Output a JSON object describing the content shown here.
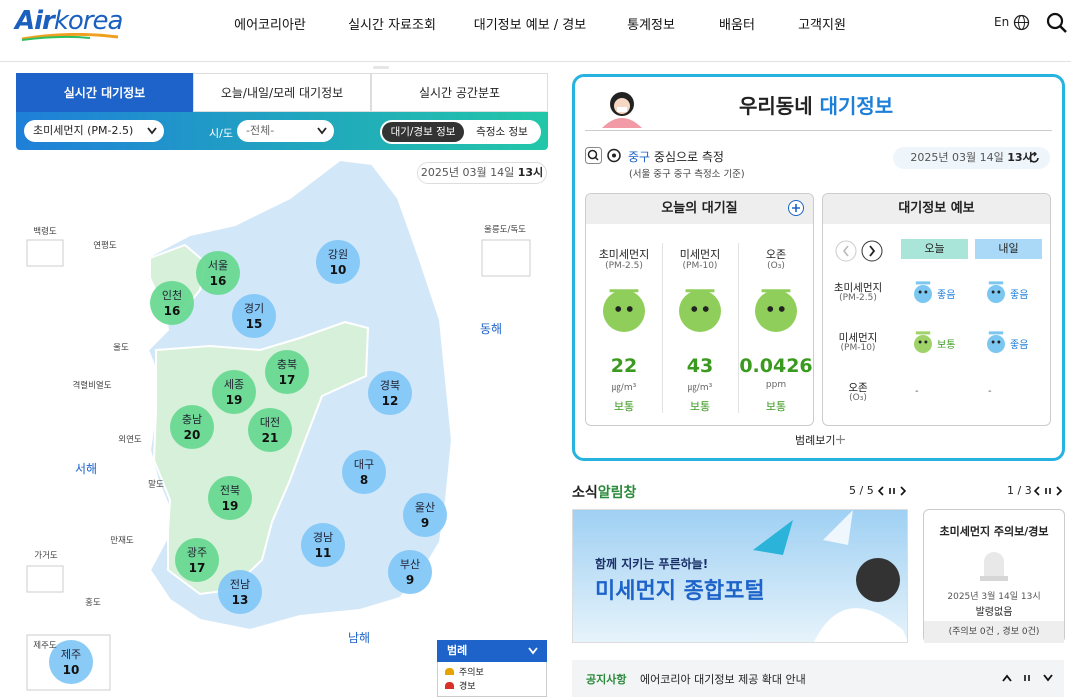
{
  "header": {
    "logo": {
      "air": "Air",
      "korea": "korea"
    },
    "nav": [
      "에어코리아란",
      "실시간 자료조회",
      "대기정보 예보 / 경보",
      "통계정보",
      "배움터",
      "고객지원"
    ],
    "lang": "En"
  },
  "left": {
    "tabs": [
      "실시간 대기정보",
      "오늘/내일/모레 대기정보",
      "실시간 공간분포"
    ],
    "filters": {
      "pollutant": "초미세먼지 (PM-2.5)",
      "region_label": "시/도",
      "region": "-전체-",
      "toggles": [
        "대기/경보 정보",
        "측정소 정보"
      ]
    },
    "date": "2025년 03월 14일",
    "hour": "13시",
    "map": {
      "regions": [
        {
          "name": "서울",
          "value": 16,
          "color": "#66d88f"
        },
        {
          "name": "인천",
          "value": 16,
          "color": "#66d88f"
        },
        {
          "name": "경기",
          "value": 15,
          "color": "#80c6f6"
        },
        {
          "name": "강원",
          "value": 10,
          "color": "#80c6f6"
        },
        {
          "name": "충북",
          "value": 17,
          "color": "#66d88f"
        },
        {
          "name": "세종",
          "value": 19,
          "color": "#66d88f"
        },
        {
          "name": "충남",
          "value": 20,
          "color": "#66d88f"
        },
        {
          "name": "대전",
          "value": 21,
          "color": "#66d88f"
        },
        {
          "name": "경북",
          "value": 12,
          "color": "#80c6f6"
        },
        {
          "name": "대구",
          "value": 8,
          "color": "#80c6f6"
        },
        {
          "name": "전북",
          "value": 19,
          "color": "#66d88f"
        },
        {
          "name": "울산",
          "value": 9,
          "color": "#80c6f6"
        },
        {
          "name": "경남",
          "value": 11,
          "color": "#80c6f6"
        },
        {
          "name": "광주",
          "value": 17,
          "color": "#66d88f"
        },
        {
          "name": "부산",
          "value": 9,
          "color": "#80c6f6"
        },
        {
          "name": "전남",
          "value": 13,
          "color": "#80c6f6"
        },
        {
          "name": "제주",
          "value": 10,
          "color": "#80c6f6"
        }
      ],
      "islands": [
        "백령도",
        "연평도",
        "울릉도/독도",
        "울도",
        "격렬비열도",
        "외연도",
        "말도",
        "가거도",
        "만재도",
        "홍도",
        "제주도"
      ],
      "seas": [
        "동해",
        "서해",
        "남해"
      ]
    },
    "legend": {
      "title": "범례",
      "items": [
        "주의보",
        "경보"
      ]
    }
  },
  "right": {
    "title": {
      "plain": "우리동네",
      "accent": "대기정보"
    },
    "location": {
      "name": "중구",
      "suffix": "중심으로 측정",
      "note": "(서울 중구 중구 측정소 기준)"
    },
    "date": "2025년 03월 14일",
    "hour": "13시",
    "today": {
      "title": "오늘의 대기질",
      "items": [
        {
          "name": "초미세먼지",
          "code": "(PM-2.5)",
          "value": 22,
          "unit": "㎍/m³",
          "status": "보통"
        },
        {
          "name": "미세먼지",
          "code": "(PM-10)",
          "value": 43,
          "unit": "㎍/m³",
          "status": "보통"
        },
        {
          "name": "오존",
          "code": "(O₃)",
          "value": 0.0426,
          "unit": "ppm",
          "status": "보통"
        }
      ]
    },
    "forecast": {
      "title": "대기정보 예보",
      "columns": [
        "오늘",
        "내일"
      ],
      "rows": [
        {
          "name": "초미세먼지",
          "code": "(PM-2.5)",
          "cells": [
            {
              "status": "좋음",
              "color": "#1f7fd9"
            },
            {
              "status": "좋음",
              "color": "#1f7fd9"
            }
          ]
        },
        {
          "name": "미세먼지",
          "code": "(PM-10)",
          "cells": [
            {
              "status": "보통",
              "color": "#3a9a1f"
            },
            {
              "status": "좋음",
              "color": "#1f7fd9"
            }
          ]
        },
        {
          "name": "오존",
          "code": "(O₃)",
          "cells": [
            {
              "status": "-",
              "color": "#555555"
            },
            {
              "status": "-",
              "color": "#555555"
            }
          ]
        }
      ]
    },
    "legend_link": "범례보기"
  },
  "news": {
    "title": {
      "plain": "소식",
      "accent": "알림창"
    },
    "pager": "5 / 5",
    "banner": {
      "sub": "함께 지키는 푸른하늘!",
      "main": "미세먼지 종합포털"
    },
    "alert": {
      "pager": "1 / 3",
      "title": "초미세먼지 주의보/경보",
      "date": "2025년 3월 14일 13시",
      "status": "발령없음",
      "counts": "(주의보 0건 , 경보 0건)"
    }
  },
  "notice": {
    "label": "공지사항",
    "text": "에어코리아 대기정보 제공 확대 안내"
  }
}
